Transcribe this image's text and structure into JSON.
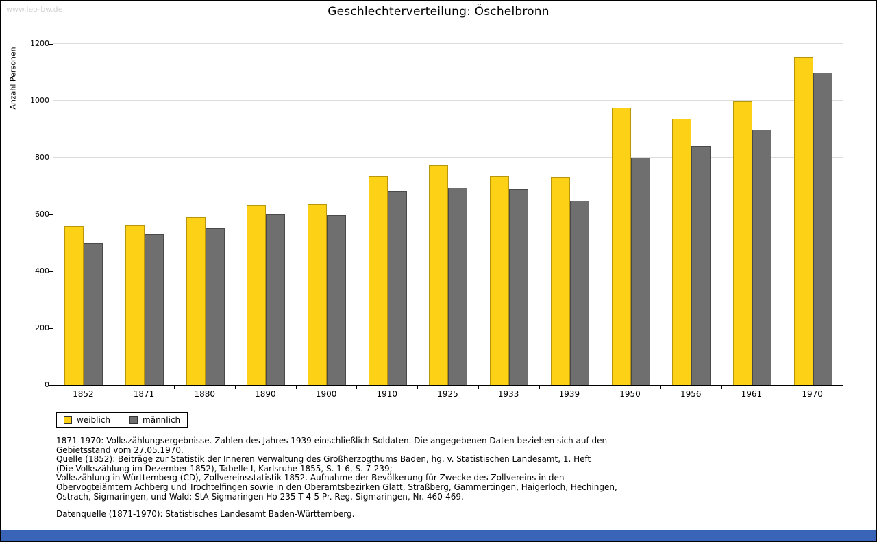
{
  "watermark": "www.leo-bw.de",
  "colors": {
    "footer_bar": "#3a64b8",
    "weiblich": "#fcd116",
    "maennlich": "#6f6f6f"
  },
  "chart_data": {
    "type": "bar",
    "title": "Geschlechterverteilung: Öschelbronn",
    "ylabel": "Anzahl Personen",
    "xlabel": "",
    "ylim": [
      0,
      1200
    ],
    "yticks": [
      0,
      200,
      400,
      600,
      800,
      1000,
      1200
    ],
    "grid": true,
    "legend_position": "bottom-left",
    "categories": [
      "1852",
      "1871",
      "1880",
      "1890",
      "1900",
      "1910",
      "1925",
      "1933",
      "1939",
      "1950",
      "1956",
      "1961",
      "1970"
    ],
    "series": [
      {
        "name": "weiblich",
        "color": "#fcd116",
        "border_color": "#b8960c",
        "values": [
          560,
          561,
          590,
          633,
          637,
          734,
          773,
          736,
          731,
          975,
          938,
          997,
          1154
        ]
      },
      {
        "name": "männlich",
        "color": "#6f6f6f",
        "border_color": "#4a4a4a",
        "values": [
          500,
          530,
          553,
          601,
          597,
          681,
          693,
          688,
          649,
          801,
          842,
          898,
          1100
        ]
      }
    ]
  },
  "footnotes": {
    "lines": [
      "1871-1970: Volkszählungsergebnisse. Zahlen des Jahres 1939 einschließlich Soldaten. Die angegebenen Daten beziehen sich auf den",
      "Gebietsstand vom 27.05.1970.",
      "Quelle (1852): Beiträge zur Statistik der Inneren Verwaltung des Großherzogthums Baden, hg. v. Statistischen Landesamt, 1. Heft",
      "(Die Volkszählung im Dezember 1852), Tabelle I, Karlsruhe 1855, S. 1-6, S. 7-239;",
      "Volkszählung in Württemberg (CD), Zollvereinsstatistik 1852. Aufnahme der Bevölkerung für Zwecke des Zollvereins in den",
      "Obervogteiämtern Achberg und Trochtelfingen sowie in den Oberamtsbezirken Glatt, Straßberg, Gammertingen, Haigerloch, Hechingen,",
      "Ostrach, Sigmaringen, und Wald; StA Sigmaringen Ho 235 T 4-5 Pr. Reg. Sigmaringen, Nr. 460-469."
    ],
    "datasource": "Datenquelle (1871-1970): Statistisches Landesamt Baden-Württemberg."
  }
}
